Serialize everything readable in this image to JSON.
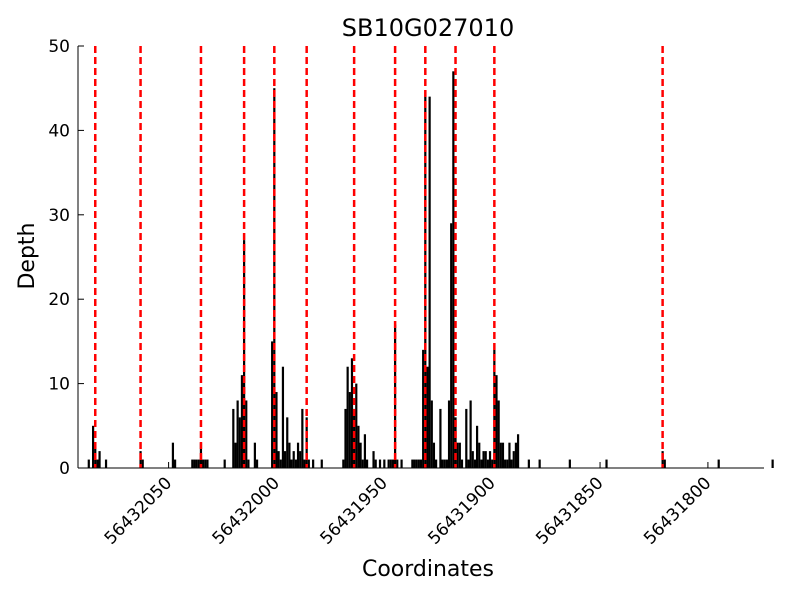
{
  "chart_data": {
    "type": "bar",
    "title": "SB10G027010",
    "xlabel": "Coordinates",
    "ylabel": "Depth",
    "xlim": [
      56432092,
      56431774
    ],
    "ylim": [
      0,
      50
    ],
    "x_axis_reversed": true,
    "xticks": [
      56432050,
      56432000,
      56431950,
      56431900,
      56431850,
      56431800
    ],
    "xtick_labels": [
      "56432050",
      "56432000",
      "56431950",
      "56431900",
      "56431850",
      "56431800"
    ],
    "yticks": [
      0,
      10,
      20,
      30,
      40,
      50
    ],
    "ytick_labels": [
      "0",
      "10",
      "20",
      "30",
      "40",
      "50"
    ],
    "grid": false,
    "bar_color": "#000000",
    "reference_line_color": "#ff0000",
    "reference_lines_x": [
      56432084,
      56432063,
      56432035,
      56432015,
      56432001,
      56431986,
      56431964,
      56431945,
      56431931,
      56431917,
      56431899,
      56431821
    ],
    "bars": [
      {
        "x": 56432087,
        "y": 1
      },
      {
        "x": 56432085,
        "y": 5
      },
      {
        "x": 56432084,
        "y": 3
      },
      {
        "x": 56432083,
        "y": 1
      },
      {
        "x": 56432082,
        "y": 2
      },
      {
        "x": 56432079,
        "y": 1
      },
      {
        "x": 56432063,
        "y": 2
      },
      {
        "x": 56432062,
        "y": 1
      },
      {
        "x": 56432048,
        "y": 3
      },
      {
        "x": 56432047,
        "y": 1
      },
      {
        "x": 56432039,
        "y": 1
      },
      {
        "x": 56432038,
        "y": 1
      },
      {
        "x": 56432037,
        "y": 1
      },
      {
        "x": 56432036,
        "y": 1
      },
      {
        "x": 56432035,
        "y": 3
      },
      {
        "x": 56432034,
        "y": 1
      },
      {
        "x": 56432033,
        "y": 1
      },
      {
        "x": 56432032,
        "y": 1
      },
      {
        "x": 56432024,
        "y": 1
      },
      {
        "x": 56432020,
        "y": 7
      },
      {
        "x": 56432019,
        "y": 3
      },
      {
        "x": 56432018,
        "y": 8
      },
      {
        "x": 56432017,
        "y": 6
      },
      {
        "x": 56432016,
        "y": 11
      },
      {
        "x": 56432015,
        "y": 27
      },
      {
        "x": 56432014,
        "y": 8
      },
      {
        "x": 56432013,
        "y": 1
      },
      {
        "x": 56432010,
        "y": 3
      },
      {
        "x": 56432009,
        "y": 1
      },
      {
        "x": 56432002,
        "y": 15
      },
      {
        "x": 56432001,
        "y": 45
      },
      {
        "x": 56432000,
        "y": 9
      },
      {
        "x": 56431999,
        "y": 2
      },
      {
        "x": 56431998,
        "y": 1
      },
      {
        "x": 56431997,
        "y": 12
      },
      {
        "x": 56431996,
        "y": 2
      },
      {
        "x": 56431995,
        "y": 6
      },
      {
        "x": 56431994,
        "y": 3
      },
      {
        "x": 56431993,
        "y": 1
      },
      {
        "x": 56431992,
        "y": 2
      },
      {
        "x": 56431991,
        "y": 1
      },
      {
        "x": 56431990,
        "y": 3
      },
      {
        "x": 56431989,
        "y": 2
      },
      {
        "x": 56431988,
        "y": 7
      },
      {
        "x": 56431987,
        "y": 1
      },
      {
        "x": 56431986,
        "y": 6
      },
      {
        "x": 56431985,
        "y": 1
      },
      {
        "x": 56431983,
        "y": 1
      },
      {
        "x": 56431979,
        "y": 1
      },
      {
        "x": 56431969,
        "y": 1
      },
      {
        "x": 56431968,
        "y": 7
      },
      {
        "x": 56431967,
        "y": 12
      },
      {
        "x": 56431966,
        "y": 9
      },
      {
        "x": 56431965,
        "y": 13
      },
      {
        "x": 56431964,
        "y": 7
      },
      {
        "x": 56431963,
        "y": 10
      },
      {
        "x": 56431962,
        "y": 5
      },
      {
        "x": 56431961,
        "y": 3
      },
      {
        "x": 56431960,
        "y": 1
      },
      {
        "x": 56431959,
        "y": 4
      },
      {
        "x": 56431958,
        "y": 1
      },
      {
        "x": 56431955,
        "y": 2
      },
      {
        "x": 56431954,
        "y": 1
      },
      {
        "x": 56431952,
        "y": 1
      },
      {
        "x": 56431950,
        "y": 1
      },
      {
        "x": 56431948,
        "y": 1
      },
      {
        "x": 56431947,
        "y": 1
      },
      {
        "x": 56431946,
        "y": 1
      },
      {
        "x": 56431945,
        "y": 17
      },
      {
        "x": 56431944,
        "y": 1
      },
      {
        "x": 56431942,
        "y": 1
      },
      {
        "x": 56431937,
        "y": 1
      },
      {
        "x": 56431936,
        "y": 1
      },
      {
        "x": 56431935,
        "y": 1
      },
      {
        "x": 56431934,
        "y": 1
      },
      {
        "x": 56431933,
        "y": 1
      },
      {
        "x": 56431932,
        "y": 14
      },
      {
        "x": 56431931,
        "y": 44
      },
      {
        "x": 56431930,
        "y": 12
      },
      {
        "x": 56431929,
        "y": 44
      },
      {
        "x": 56431928,
        "y": 8
      },
      {
        "x": 56431927,
        "y": 3
      },
      {
        "x": 56431926,
        "y": 1
      },
      {
        "x": 56431924,
        "y": 7
      },
      {
        "x": 56431923,
        "y": 1
      },
      {
        "x": 56431922,
        "y": 1
      },
      {
        "x": 56431921,
        "y": 1
      },
      {
        "x": 56431920,
        "y": 8
      },
      {
        "x": 56431919,
        "y": 29
      },
      {
        "x": 56431918,
        "y": 47
      },
      {
        "x": 56431917,
        "y": 6
      },
      {
        "x": 56431916,
        "y": 3
      },
      {
        "x": 56431915,
        "y": 3
      },
      {
        "x": 56431914,
        "y": 1
      },
      {
        "x": 56431912,
        "y": 7
      },
      {
        "x": 56431911,
        "y": 1
      },
      {
        "x": 56431910,
        "y": 8
      },
      {
        "x": 56431909,
        "y": 2
      },
      {
        "x": 56431908,
        "y": 1
      },
      {
        "x": 56431907,
        "y": 5
      },
      {
        "x": 56431906,
        "y": 3
      },
      {
        "x": 56431905,
        "y": 1
      },
      {
        "x": 56431904,
        "y": 2
      },
      {
        "x": 56431903,
        "y": 2
      },
      {
        "x": 56431902,
        "y": 1
      },
      {
        "x": 56431901,
        "y": 2
      },
      {
        "x": 56431900,
        "y": 1
      },
      {
        "x": 56431899,
        "y": 14
      },
      {
        "x": 56431898,
        "y": 11
      },
      {
        "x": 56431897,
        "y": 8
      },
      {
        "x": 56431896,
        "y": 3
      },
      {
        "x": 56431895,
        "y": 3
      },
      {
        "x": 56431894,
        "y": 1
      },
      {
        "x": 56431893,
        "y": 1
      },
      {
        "x": 56431892,
        "y": 3
      },
      {
        "x": 56431891,
        "y": 1
      },
      {
        "x": 56431890,
        "y": 2
      },
      {
        "x": 56431889,
        "y": 3
      },
      {
        "x": 56431888,
        "y": 4
      },
      {
        "x": 56431883,
        "y": 1
      },
      {
        "x": 56431878,
        "y": 1
      },
      {
        "x": 56431864,
        "y": 1
      },
      {
        "x": 56431847,
        "y": 1
      },
      {
        "x": 56431821,
        "y": 2
      },
      {
        "x": 56431820,
        "y": 1
      },
      {
        "x": 56431795,
        "y": 1
      },
      {
        "x": 56431770,
        "y": 1
      }
    ]
  }
}
